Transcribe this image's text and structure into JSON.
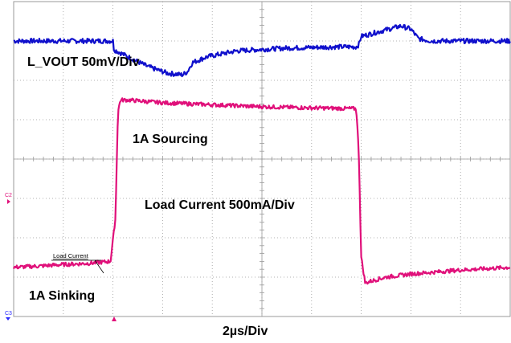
{
  "chart_data": {
    "type": "line",
    "title": "",
    "xlabel": "2µs/Div",
    "ylabel": "",
    "x_units": "div",
    "y_units": "div",
    "xlim": [
      0,
      10
    ],
    "ylim": [
      0,
      8
    ],
    "grid": true,
    "annotations": {
      "vout_label": "L_VOUT 50mV/Div",
      "sourcing_label": "1A Sourcing",
      "load_label": "Load Current 500mA/Div",
      "sinking_label": "1A Sinking",
      "legend_snippet": "Load Current"
    },
    "markers": {
      "ch2": "C2",
      "ch3": "C3"
    },
    "colors": {
      "vout": "#1010cc",
      "load": "#e0107a",
      "grid": "#9a9a9a",
      "trigger": "#e0107a",
      "ch3_marker": "#2a2aff"
    },
    "series": [
      {
        "name": "L_VOUT 50mV/Div",
        "x": [
          0,
          0.5,
          1.0,
          1.5,
          1.9,
          2.0,
          2.02,
          2.3,
          2.7,
          3.1,
          3.4,
          3.5,
          3.6,
          3.9,
          4.5,
          5.5,
          6.5,
          6.9,
          6.95,
          7.0,
          7.1,
          7.4,
          7.8,
          8.0,
          8.15,
          8.4,
          9.0,
          10.0
        ],
        "y": [
          7.0,
          7.0,
          7.0,
          7.0,
          7.0,
          7.0,
          6.78,
          6.6,
          6.35,
          6.18,
          6.14,
          6.22,
          6.45,
          6.6,
          6.75,
          6.82,
          6.85,
          6.85,
          6.9,
          7.12,
          7.15,
          7.25,
          7.38,
          7.3,
          7.06,
          7.0,
          7.0,
          7.0
        ]
      },
      {
        "name": "Load Current 500mA/Div",
        "x": [
          0,
          0.5,
          1.0,
          1.5,
          1.95,
          2.05,
          2.1,
          2.15,
          2.3,
          3.0,
          4.0,
          5.0,
          6.0,
          6.9,
          6.95,
          7.0,
          7.08,
          7.2,
          7.5,
          8.0,
          9.0,
          10.0
        ],
        "y": [
          1.25,
          1.28,
          1.32,
          1.35,
          1.4,
          2.5,
          5.2,
          5.5,
          5.5,
          5.43,
          5.38,
          5.33,
          5.3,
          5.28,
          4.2,
          1.5,
          0.85,
          0.9,
          1.0,
          1.08,
          1.18,
          1.25
        ]
      }
    ]
  }
}
